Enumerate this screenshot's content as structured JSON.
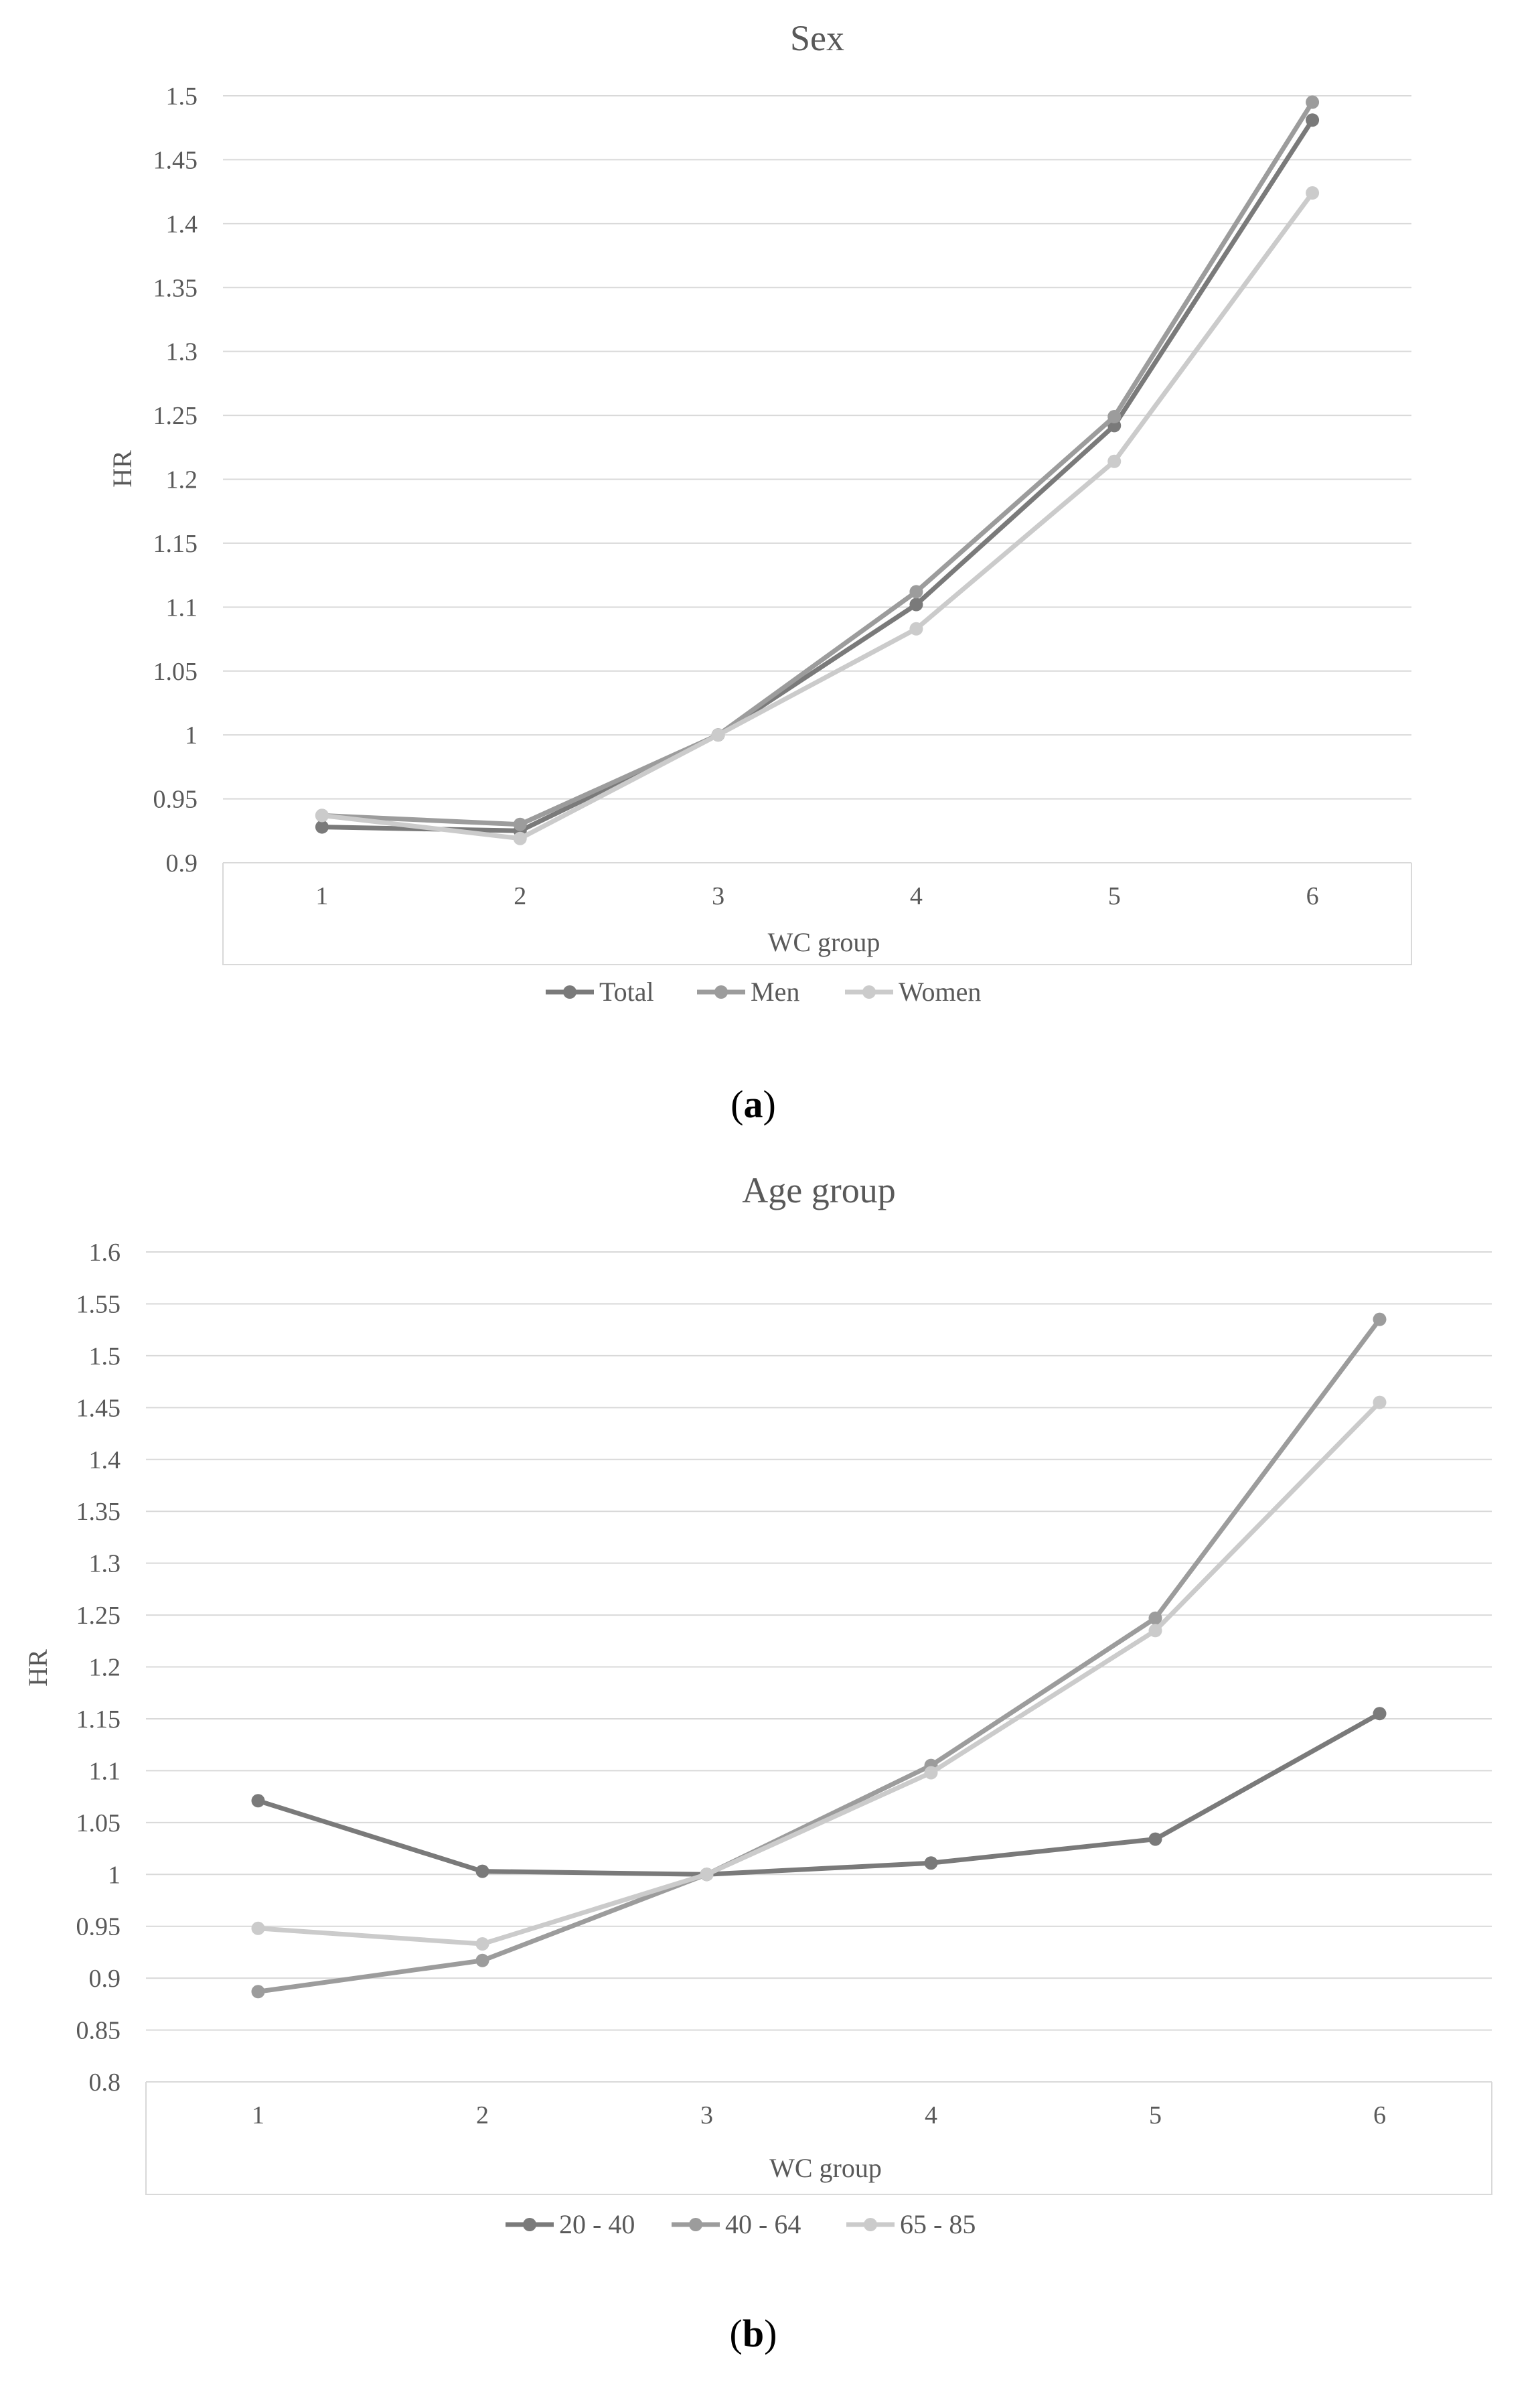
{
  "chart_data": [
    {
      "type": "line",
      "panel": "a",
      "caption": "(a)",
      "title": "Sex",
      "xlabel": "WC group",
      "ylabel": "HR",
      "categories": [
        "1",
        "2",
        "3",
        "4",
        "5",
        "6"
      ],
      "ylim": [
        0.9,
        1.5
      ],
      "yticks": [
        0.9,
        0.95,
        1,
        1.05,
        1.1,
        1.15,
        1.2,
        1.25,
        1.3,
        1.35,
        1.4,
        1.45,
        1.5
      ],
      "ytick_labels": [
        "0.9",
        "0.95",
        "1",
        "1.05",
        "1.1",
        "1.15",
        "1.2",
        "1.25",
        "1.3",
        "1.35",
        "1.4",
        "1.45",
        "1.5"
      ],
      "grid": true,
      "legend_position": "bottom",
      "series": [
        {
          "name": "Total",
          "color": "#7a7a7a",
          "values": [
            0.928,
            0.925,
            1.0,
            1.102,
            1.242,
            1.481
          ]
        },
        {
          "name": "Men",
          "color": "#9c9c9c",
          "values": [
            0.937,
            0.93,
            1.0,
            1.112,
            1.249,
            1.495
          ]
        },
        {
          "name": "Women",
          "color": "#cbcbcb",
          "values": [
            0.937,
            0.919,
            1.0,
            1.083,
            1.214,
            1.424
          ]
        }
      ]
    },
    {
      "type": "line",
      "panel": "b",
      "caption": "(b)",
      "title": "Age group",
      "xlabel": "WC group",
      "ylabel": "HR",
      "categories": [
        "1",
        "2",
        "3",
        "4",
        "5",
        "6"
      ],
      "ylim": [
        0.8,
        1.6
      ],
      "yticks": [
        0.8,
        0.85,
        0.9,
        0.95,
        1,
        1.05,
        1.1,
        1.15,
        1.2,
        1.25,
        1.3,
        1.35,
        1.4,
        1.45,
        1.5,
        1.55,
        1.6
      ],
      "ytick_labels": [
        "0.8",
        "0.85",
        "0.9",
        "0.95",
        "1",
        "1.05",
        "1.1",
        "1.15",
        "1.2",
        "1.25",
        "1.3",
        "1.35",
        "1.4",
        "1.45",
        "1.5",
        "1.55",
        "1.6"
      ],
      "grid": true,
      "legend_position": "bottom",
      "series": [
        {
          "name": "20 - 40",
          "color": "#7a7a7a",
          "values": [
            1.071,
            1.003,
            1.0,
            1.011,
            1.034,
            1.155
          ]
        },
        {
          "name": "40 - 64",
          "color": "#9c9c9c",
          "values": [
            0.887,
            0.917,
            1.0,
            1.105,
            1.247,
            1.535
          ]
        },
        {
          "name": "65 - 85",
          "color": "#cbcbcb",
          "values": [
            0.948,
            0.933,
            1.0,
            1.098,
            1.235,
            1.455
          ]
        }
      ]
    }
  ]
}
